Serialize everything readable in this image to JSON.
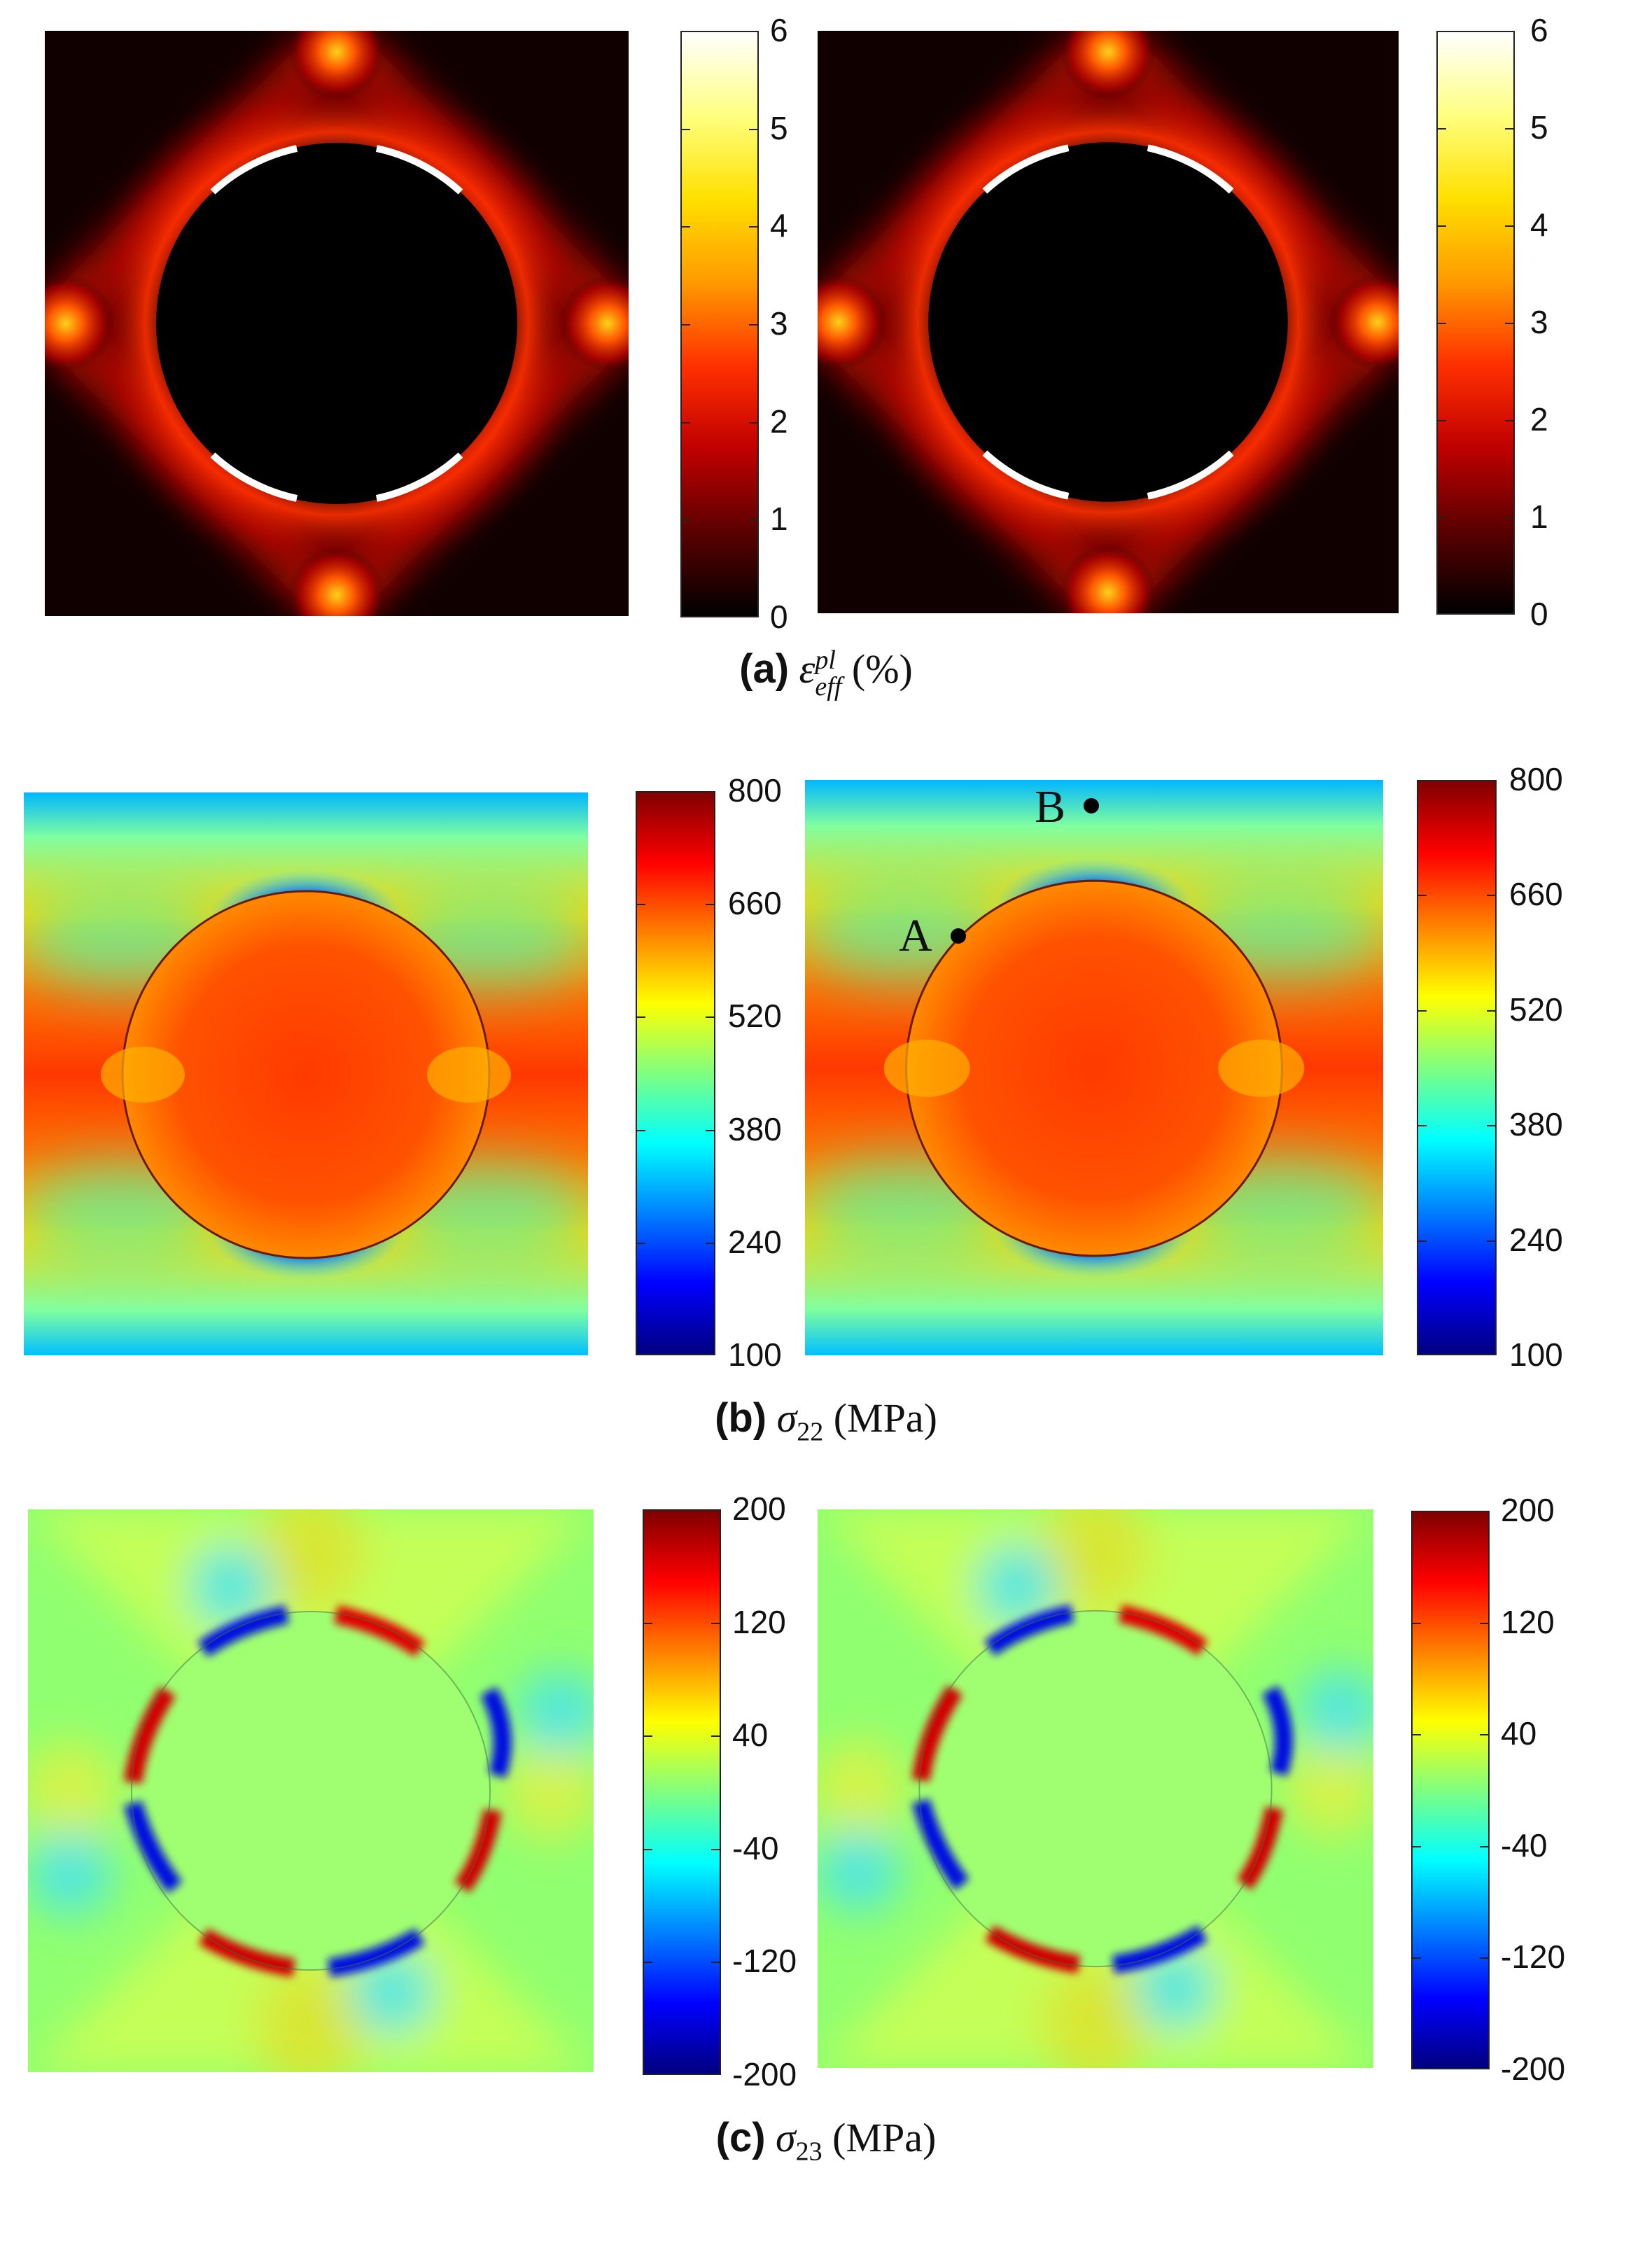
{
  "rows": [
    {
      "id": "a",
      "caption": {
        "letter": "(a)",
        "symbol": "ε",
        "sub": "eff",
        "sup": "pl",
        "unit": "(%)"
      },
      "colorbar": {
        "colormap": "hot",
        "ticks": [
          "6",
          "5",
          "4",
          "3",
          "2",
          "1",
          "0"
        ]
      }
    },
    {
      "id": "b",
      "caption": {
        "letter": "(b)",
        "symbol": "σ",
        "sub": "22",
        "sup": "",
        "unit": "(MPa)"
      },
      "colorbar": {
        "colormap": "jet",
        "ticks": [
          "800",
          "660",
          "520",
          "380",
          "240",
          "100"
        ]
      },
      "markers": [
        "A",
        "B"
      ]
    },
    {
      "id": "c",
      "caption": {
        "letter": "(c)",
        "symbol": "σ",
        "sub": "23",
        "sup": "",
        "unit": "(MPa)"
      },
      "colorbar": {
        "colormap": "jet",
        "ticks": [
          "200",
          "120",
          "40",
          "-40",
          "-120",
          "-200"
        ]
      }
    }
  ],
  "colors": {
    "hot": [
      "#000000",
      "#5a0000",
      "#c00000",
      "#ff3000",
      "#ff9a00",
      "#ffe000",
      "#ffff80",
      "#ffffff"
    ],
    "jet": [
      "#00007f",
      "#0000ff",
      "#0080ff",
      "#00ffff",
      "#80ff80",
      "#ffff00",
      "#ff8000",
      "#ff0000",
      "#7f0000"
    ]
  }
}
